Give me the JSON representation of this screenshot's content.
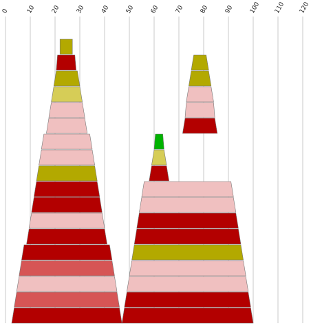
{
  "chart_data": {
    "type": "stacked-trapezoid",
    "x_ticks": [
      0,
      10,
      20,
      30,
      40,
      50,
      60,
      70,
      80,
      90,
      100,
      110,
      120
    ],
    "xlim": [
      0,
      120
    ],
    "grid": true,
    "palette": {
      "red": "#b30000",
      "pink": "#f0c0c0",
      "olive": "#b3a900",
      "khaki": "#d6cd57",
      "rose": "#d65555",
      "green": "#00b300"
    },
    "stacks": [
      {
        "layers": [
          {
            "bottom": [
              2.5,
              47.0
            ],
            "top": [
              3.5,
              46.0
            ],
            "color": "red"
          },
          {
            "bottom": [
              3.5,
              46.0
            ],
            "top": [
              4.5,
              45.0
            ],
            "color": "rose"
          },
          {
            "bottom": [
              4.5,
              45.0
            ],
            "top": [
              5.5,
              44.0
            ],
            "color": "pink"
          },
          {
            "bottom": [
              5.5,
              44.0
            ],
            "top": [
              6.5,
              43.0
            ],
            "color": "rose"
          },
          {
            "bottom": [
              6.5,
              43.0
            ],
            "top": [
              7.5,
              42.0
            ],
            "color": "red"
          },
          {
            "bottom": [
              8.5,
              41.0
            ],
            "top": [
              9.5,
              40.0
            ],
            "color": "red"
          },
          {
            "bottom": [
              9.5,
              40.0
            ],
            "top": [
              10.5,
              39.0
            ],
            "color": "pink"
          },
          {
            "bottom": [
              10.5,
              39.0
            ],
            "top": [
              11.5,
              38.0
            ],
            "color": "red"
          },
          {
            "bottom": [
              11.5,
              38.0
            ],
            "top": [
              12.5,
              37.0
            ],
            "color": "red"
          },
          {
            "bottom": [
              12.5,
              37.0
            ],
            "top": [
              13.5,
              36.0
            ],
            "color": "olive"
          },
          {
            "bottom": [
              13.5,
              36.0
            ],
            "top": [
              14.5,
              35.0
            ],
            "color": "pink"
          },
          {
            "bottom": [
              14.5,
              35.0
            ],
            "top": [
              15.5,
              34.0
            ],
            "color": "pink"
          },
          {
            "bottom": [
              16.5,
              33.0
            ],
            "top": [
              17.5,
              32.0
            ],
            "color": "pink"
          },
          {
            "bottom": [
              17.5,
              32.0
            ],
            "top": [
              18.5,
              31.0
            ],
            "color": "pink"
          },
          {
            "bottom": [
              18.5,
              31.0
            ],
            "top": [
              19.5,
              30.0
            ],
            "color": "khaki"
          },
          {
            "bottom": [
              19.5,
              30.0
            ],
            "top": [
              20.5,
              29.0
            ],
            "color": "olive"
          },
          {
            "bottom": [
              20.5,
              28.5
            ],
            "top": [
              21.0,
              28.0
            ],
            "color": "red"
          },
          {
            "bottom": [
              22.0,
              27.0
            ],
            "top": [
              22.0,
              27.0
            ],
            "color": "olive"
          }
        ]
      },
      {
        "layers": [
          {
            "bottom": [
              47.0,
              100.0
            ],
            "top": [
              48.0,
              99.0
            ],
            "color": "red"
          },
          {
            "bottom": [
              48.0,
              99.0
            ],
            "top": [
              49.0,
              98.0
            ],
            "color": "red"
          },
          {
            "bottom": [
              49.0,
              98.0
            ],
            "top": [
              50.0,
              97.0
            ],
            "color": "pink"
          },
          {
            "bottom": [
              50.0,
              97.0
            ],
            "top": [
              51.0,
              96.0
            ],
            "color": "pink"
          },
          {
            "bottom": [
              51.0,
              96.0
            ],
            "top": [
              52.0,
              95.0
            ],
            "color": "olive"
          },
          {
            "bottom": [
              52.0,
              95.0
            ],
            "top": [
              53.0,
              94.0
            ],
            "color": "red"
          },
          {
            "bottom": [
              53.0,
              94.0
            ],
            "top": [
              54.0,
              93.0
            ],
            "color": "red"
          },
          {
            "bottom": [
              54.0,
              93.0
            ],
            "top": [
              55.0,
              92.0
            ],
            "color": "pink"
          },
          {
            "bottom": [
              55.0,
              92.0
            ],
            "top": [
              56.0,
              91.0
            ],
            "color": "pink"
          },
          {
            "bottom": [
              58.0,
              66.0
            ],
            "top": [
              59.0,
              65.0
            ],
            "color": "red"
          },
          {
            "bottom": [
              59.0,
              65.0
            ],
            "top": [
              60.0,
              64.0
            ],
            "color": "khaki"
          },
          {
            "bottom": [
              60.0,
              64.0
            ],
            "top": [
              60.5,
              63.5
            ],
            "color": "green"
          },
          {
            "bottom": [
              71.5,
              85.5
            ],
            "top": [
              72.5,
              84.5
            ],
            "color": "red"
          },
          {
            "bottom": [
              72.5,
              84.5
            ],
            "top": [
              73.0,
              84.0
            ],
            "color": "pink"
          },
          {
            "bottom": [
              73.0,
              84.0
            ],
            "top": [
              74.0,
              83.0
            ],
            "color": "pink"
          },
          {
            "bottom": [
              74.0,
              83.0
            ],
            "top": [
              75.0,
              82.0
            ],
            "color": "olive"
          },
          {
            "bottom": [
              75.0,
              82.0
            ],
            "top": [
              76.0,
              81.0
            ],
            "color": "olive"
          }
        ]
      }
    ]
  }
}
